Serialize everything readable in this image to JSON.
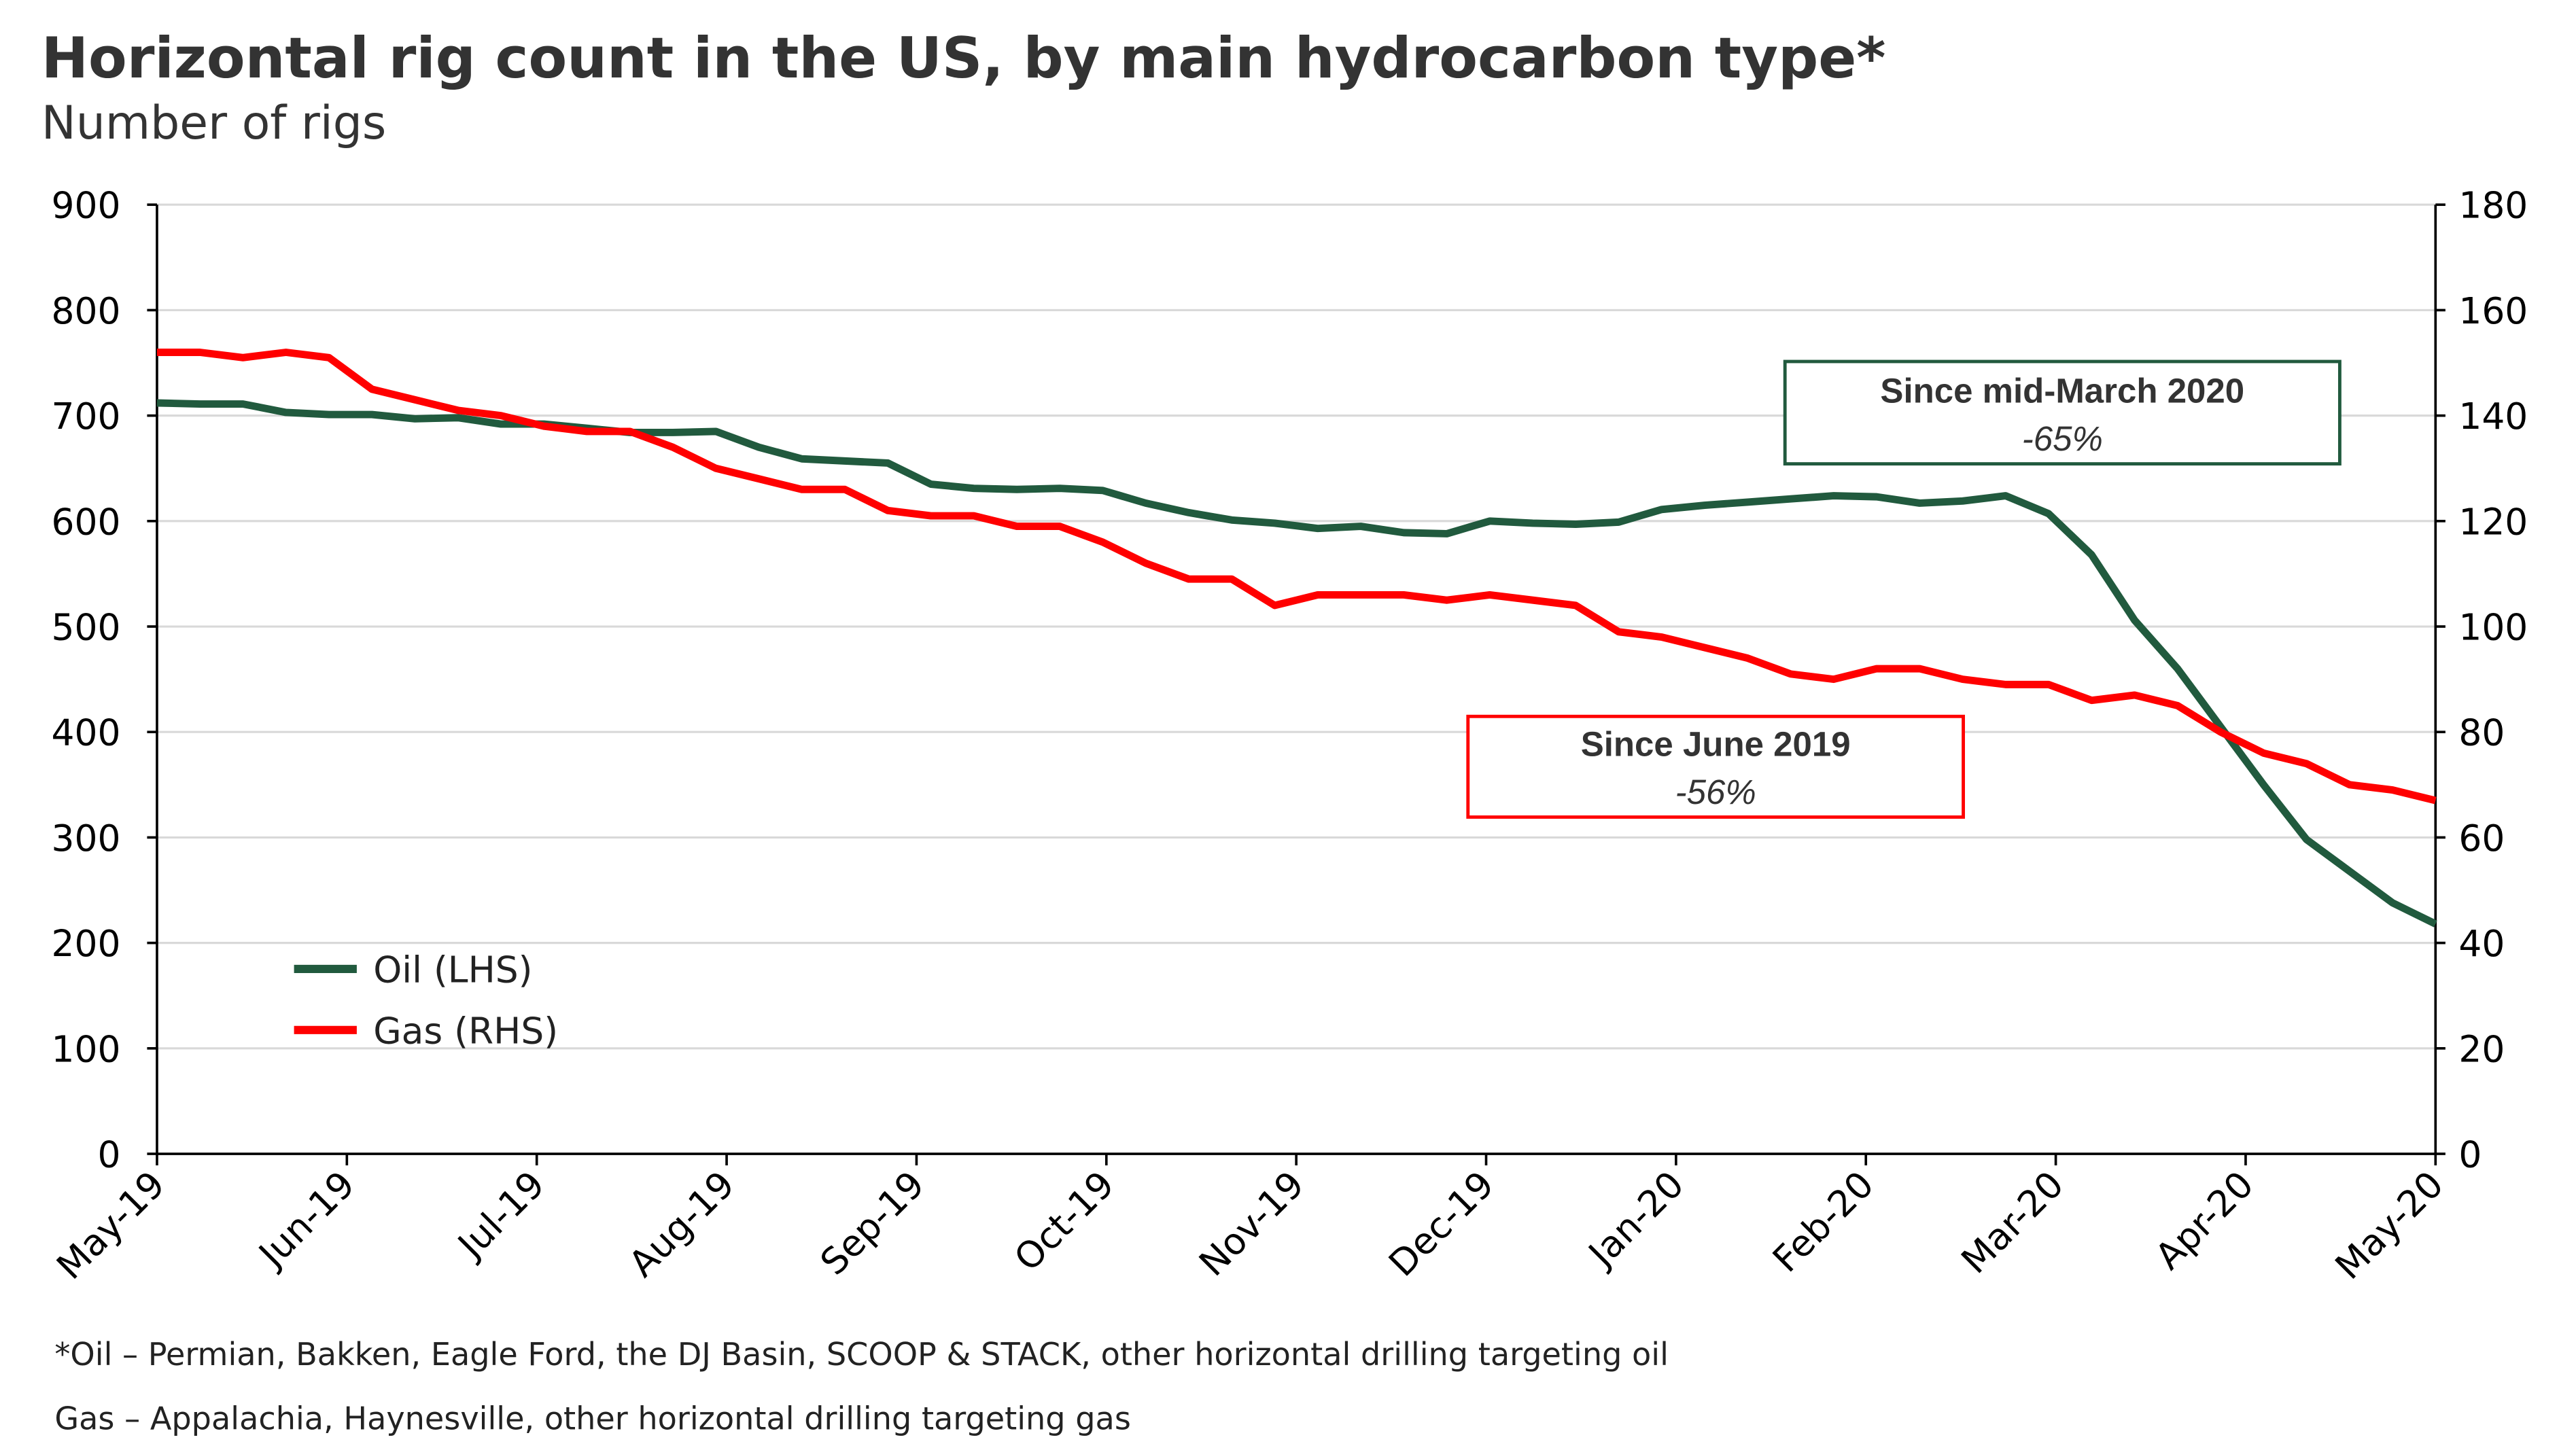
{
  "chart_data": {
    "type": "line",
    "title": "Horizontal rig count in the US, by main hydrocarbon type*",
    "subtitle": "Number of rigs",
    "x_tick_labels": [
      "May-19",
      "Jun-19",
      "Jul-19",
      "Aug-19",
      "Sep-19",
      "Oct-19",
      "Nov-19",
      "Dec-19",
      "Jan-20",
      "Feb-20",
      "Mar-20",
      "Apr-20",
      "May-20"
    ],
    "x_range": [
      "May-19",
      "May-20"
    ],
    "y_left": {
      "range": [
        0,
        900
      ],
      "ticks": [
        0,
        100,
        200,
        300,
        400,
        500,
        600,
        700,
        800,
        900
      ]
    },
    "y_right": {
      "range": [
        0,
        180
      ],
      "ticks": [
        0,
        20,
        40,
        60,
        80,
        100,
        120,
        140,
        160,
        180
      ]
    },
    "grid": true,
    "legend_position": "bottom-left",
    "series": [
      {
        "name": "Oil (LHS)",
        "axis": "left",
        "color": "#215a3e",
        "values": [
          712,
          711,
          711,
          703,
          701,
          701,
          697,
          698,
          692,
          692,
          688,
          684,
          684,
          685,
          670,
          659,
          657,
          655,
          635,
          631,
          630,
          631,
          629,
          617,
          608,
          601,
          598,
          593,
          595,
          589,
          588,
          600,
          598,
          597,
          599,
          611,
          615,
          618,
          621,
          624,
          623,
          617,
          619,
          624,
          607,
          568,
          506,
          460,
          405,
          350,
          298,
          268,
          238,
          218
        ]
      },
      {
        "name": "Gas (RHS)",
        "axis": "right",
        "color": "#ff0000",
        "values": [
          152,
          152,
          151,
          152,
          151,
          145,
          143,
          141,
          140,
          138,
          137,
          137,
          134,
          130,
          128,
          126,
          126,
          122,
          121,
          121,
          119,
          119,
          116,
          112,
          109,
          109,
          104,
          106,
          106,
          106,
          105,
          106,
          105,
          104,
          99,
          98,
          96,
          94,
          91,
          90,
          92,
          92,
          90,
          89,
          89,
          86,
          87,
          85,
          80,
          76,
          74,
          70,
          69,
          67
        ]
      }
    ],
    "annotations": [
      {
        "line1": "Since mid-March 2020",
        "line2": "-65%",
        "color": "#215a3e"
      },
      {
        "line1": "Since June 2019",
        "line2": "-56%",
        "color": "#ff0000"
      }
    ]
  },
  "footnotes": [
    "*Oil – Permian, Bakken, Eagle Ford, the DJ Basin, SCOOP & STACK, other horizontal drilling targeting oil",
    "Gas – Appalachia, Haynesville, other horizontal drilling targeting gas"
  ]
}
